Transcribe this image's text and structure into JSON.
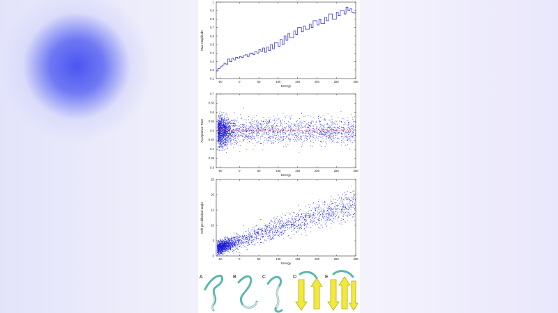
{
  "chart_data": [
    {
      "type": "line",
      "step": true,
      "xlabel": "Energy",
      "ylabel": "Max Amplitude",
      "xlim": [
        -60,
        300
      ],
      "ylim": [
        0.1,
        1.0
      ],
      "xticks": [
        -50,
        0,
        50,
        100,
        150,
        200,
        250,
        300
      ],
      "yticks": [
        0.1,
        0.2,
        0.3,
        0.4,
        0.5,
        0.6,
        0.7,
        0.8,
        0.9,
        1.0
      ],
      "color": "#3333cc",
      "series": [
        {
          "x": [
            -60,
            -55,
            -50,
            -45,
            -40,
            -35,
            -30,
            -25,
            -20,
            -15,
            -10,
            -5,
            0,
            5,
            10,
            15,
            20,
            25,
            30,
            35,
            40,
            45,
            50,
            55,
            60,
            65,
            70,
            75,
            80,
            85,
            90,
            100,
            105,
            110,
            115,
            120,
            125,
            130,
            140,
            145,
            150,
            160,
            165,
            170,
            180,
            185,
            190,
            200,
            205,
            210,
            220,
            225,
            230,
            240,
            250,
            255,
            260,
            270,
            275,
            280,
            285,
            290,
            295,
            300
          ],
          "y": [
            0.19,
            0.22,
            0.24,
            0.26,
            0.28,
            0.27,
            0.33,
            0.3,
            0.34,
            0.32,
            0.35,
            0.34,
            0.36,
            0.35,
            0.37,
            0.38,
            0.36,
            0.39,
            0.4,
            0.38,
            0.42,
            0.4,
            0.44,
            0.42,
            0.46,
            0.41,
            0.47,
            0.43,
            0.5,
            0.45,
            0.52,
            0.48,
            0.56,
            0.5,
            0.6,
            0.55,
            0.63,
            0.58,
            0.66,
            0.62,
            0.7,
            0.65,
            0.72,
            0.68,
            0.74,
            0.7,
            0.78,
            0.73,
            0.8,
            0.75,
            0.82,
            0.78,
            0.86,
            0.8,
            0.88,
            0.84,
            0.9,
            0.86,
            0.94,
            0.9,
            0.92,
            0.88,
            0.87,
            0.88
          ]
        }
      ]
    },
    {
      "type": "scatter",
      "xlabel": "Energy",
      "ylabel": "Acceptance Rate",
      "xlim": [
        -60,
        300
      ],
      "ylim": [
        0.3,
        0.7
      ],
      "xticks": [
        -50,
        0,
        50,
        100,
        150,
        200,
        250,
        300
      ],
      "yticks": [
        0.3,
        0.35,
        0.4,
        0.45,
        0.5,
        0.55,
        0.6,
        0.65,
        0.7
      ],
      "reference_line": 0.5,
      "reference_color": "#e04848",
      "color": "#1a1ad8",
      "points_approx": 2600,
      "distribution": "dense cluster near x=-50..-30 centered on 0.5, spread roughly 0.40 to 0.62 across the range"
    },
    {
      "type": "scatter",
      "xlabel": "Energy",
      "ylabel": "Drift per dihedral angle",
      "xlim": [
        -60,
        300
      ],
      "ylim": [
        0,
        25
      ],
      "xticks": [
        -50,
        0,
        50,
        100,
        150,
        200,
        250,
        300
      ],
      "yticks": [
        0,
        5,
        10,
        15,
        20,
        25
      ],
      "color": "#1a1ad8",
      "points_approx": 2600,
      "distribution": "increasing trend from about 2.5 at x=-55 to about 17 at x=300"
    }
  ],
  "structures": {
    "labels": [
      "A",
      "B",
      "C",
      "D",
      "E"
    ]
  }
}
